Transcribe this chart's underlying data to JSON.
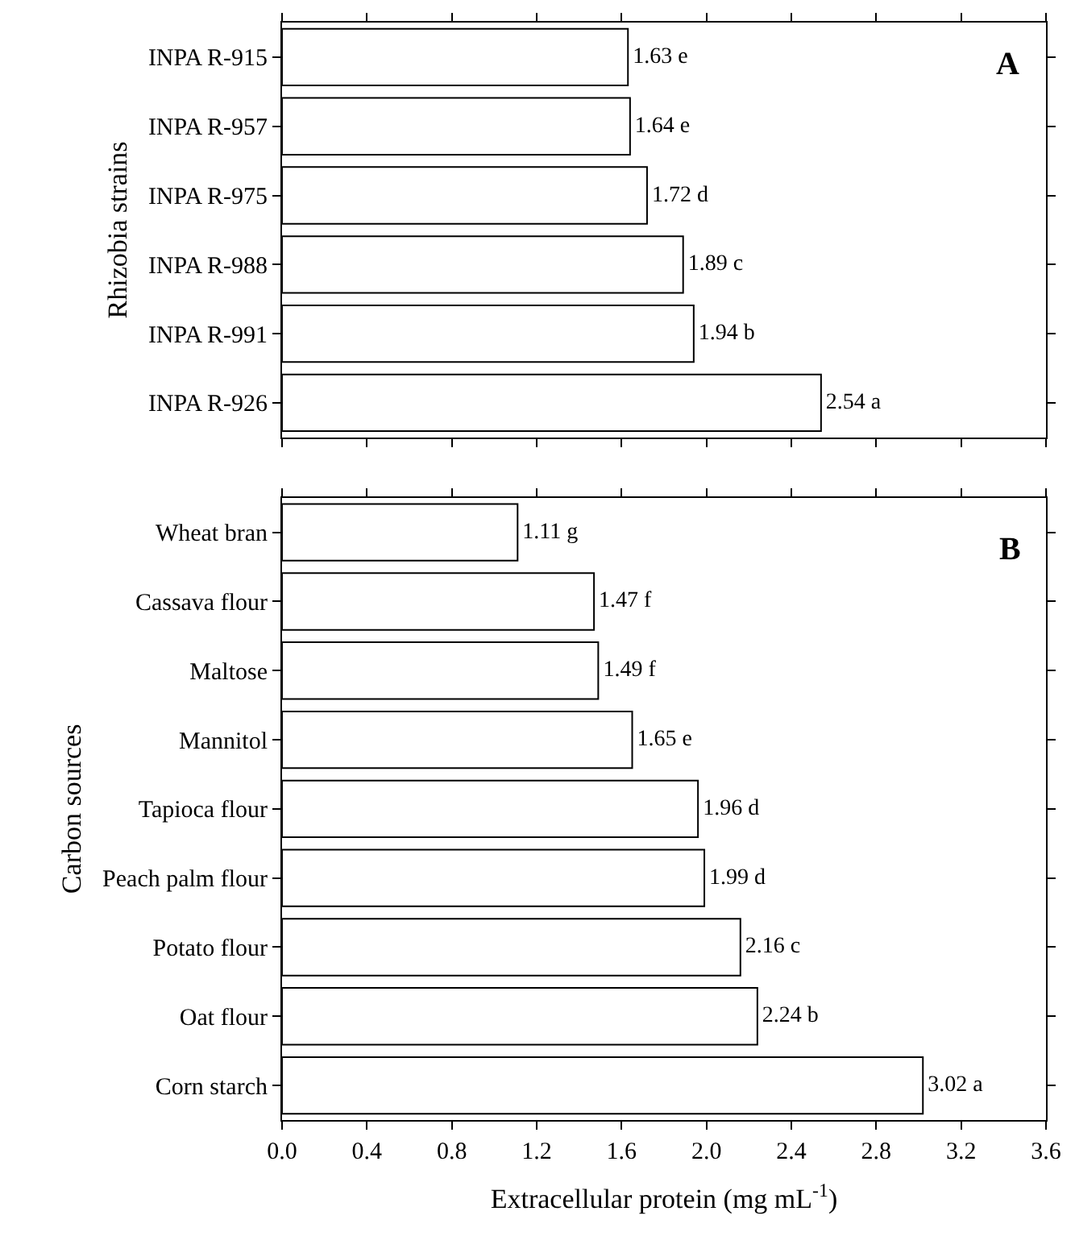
{
  "chart_data": [
    {
      "type": "bar",
      "orientation": "horizontal",
      "ylabel": "Rhizobia strains",
      "categories": [
        "INPA R-915",
        "INPA R-957",
        "INPA R-975",
        "INPA R-988",
        "INPA R-991",
        "INPA R-926"
      ],
      "values": [
        1.63,
        1.64,
        1.72,
        1.89,
        1.94,
        2.54
      ],
      "value_labels": [
        "1.63 e",
        "1.64 e",
        "1.72 d",
        "1.89 c",
        "1.94 b",
        "2.54 a"
      ],
      "color": "#ffffff",
      "xlim": [
        0,
        3.6
      ],
      "xticks": [
        {
          "value": 0,
          "label": null
        },
        {
          "value": 0.4,
          "label": null
        },
        {
          "value": 0.8,
          "label": null
        },
        {
          "value": 1.2,
          "label": null
        },
        {
          "value": 1.6,
          "label": null
        },
        {
          "value": 2.0,
          "label": null
        },
        {
          "value": 2.4,
          "label": null
        },
        {
          "value": 2.8,
          "label": null
        },
        {
          "value": 3.2,
          "label": null
        },
        {
          "value": 3.6,
          "label": null
        }
      ],
      "tick_labels": "y",
      "annotations": [
        "A"
      ]
    },
    {
      "type": "bar",
      "orientation": "horizontal",
      "ylabel": "Carbon sources",
      "xlabel": "Extracellular protein (mg mL$^{-1}$)",
      "categories": [
        "Wheat bran",
        "Cassava flour",
        "Maltose",
        "Mannitol",
        "Tapioca flour",
        "Peach palm flour",
        "Potato flour",
        "Oat flour",
        "Corn starch"
      ],
      "values": [
        1.11,
        1.47,
        1.49,
        1.65,
        1.96,
        1.99,
        2.16,
        2.24,
        3.02
      ],
      "value_labels": [
        "1.11 g",
        "1.47 f",
        "1.49 f",
        "1.65 e",
        "1.96 d",
        "1.99 d",
        "2.16 c",
        "2.24 b",
        "3.02 a"
      ],
      "color": "#ffffff",
      "xlim": [
        0,
        3.6
      ],
      "xticks": [
        {
          "value": 0,
          "label": "0.0"
        },
        {
          "value": 0.4,
          "label": "0.4"
        },
        {
          "value": 0.8,
          "label": "0.8"
        },
        {
          "value": 1.2,
          "label": "1.2"
        },
        {
          "value": 1.6,
          "label": "1.6"
        },
        {
          "value": 2.0,
          "label": "2.0"
        },
        {
          "value": 2.4,
          "label": "2.4"
        },
        {
          "value": 2.8,
          "label": "2.8"
        },
        {
          "value": 3.2,
          "label": "3.2"
        },
        {
          "value": 3.6,
          "label": "3.6"
        }
      ],
      "annotations": [
        "B"
      ]
    }
  ]
}
